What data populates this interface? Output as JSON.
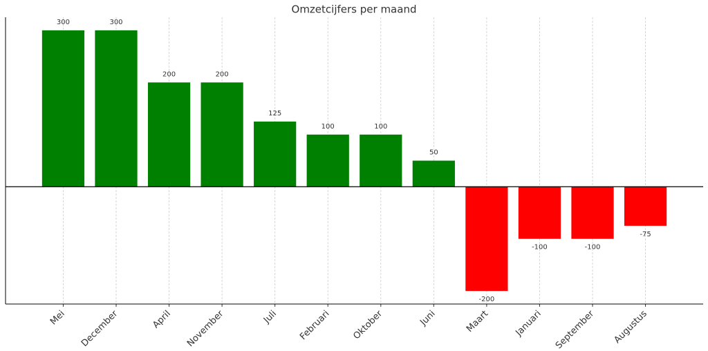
{
  "chart_data": {
    "type": "bar",
    "title": "Omzetcijfers per maand",
    "categories": [
      "Mei",
      "December",
      "April",
      "November",
      "Juli",
      "Februari",
      "Oktober",
      "Juni",
      "Maart",
      "Januari",
      "September",
      "Augustus"
    ],
    "values": [
      300,
      300,
      200,
      200,
      125,
      100,
      100,
      50,
      -200,
      -100,
      -100,
      -75
    ],
    "colors": [
      "#008000",
      "#008000",
      "#008000",
      "#008000",
      "#008000",
      "#008000",
      "#008000",
      "#008000",
      "#ff0000",
      "#ff0000",
      "#ff0000",
      "#ff0000"
    ],
    "ylim": [
      -225,
      325
    ],
    "grid": "x",
    "zero_line": true
  }
}
